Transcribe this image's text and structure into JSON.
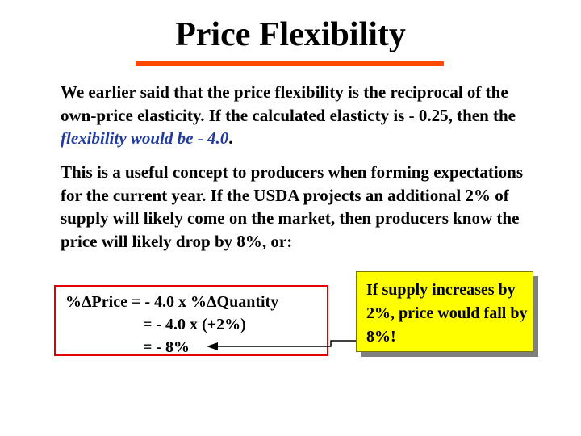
{
  "title": "Price Flexibility",
  "paragraph1": {
    "text": "We earlier said that the price flexibility is the reciprocal of the own-price elasticity.  If the calculated elasticty is - 0.25, then the ",
    "emphasis": "flexibility would be - 4.0",
    "end": "."
  },
  "paragraph2": "This is a useful concept to producers when forming expectations for the current year. If the USDA projects an additional  2% of supply will likely come on the market, then producers know the price will likely drop by 8%, or:",
  "formula": {
    "line1": "%ΔPrice = - 4.0 x %ΔQuantity",
    "line2": "= - 4.0 x (+2%)",
    "line3": "= - 8%"
  },
  "callout": {
    "text": "If supply increases by 2%, price would fall by 8%!"
  },
  "colors": {
    "title_rule": "#ff4a00",
    "emphasis": "#1f3aa0",
    "formula_border": "#e00000",
    "callout_bg": "#ffff00"
  }
}
